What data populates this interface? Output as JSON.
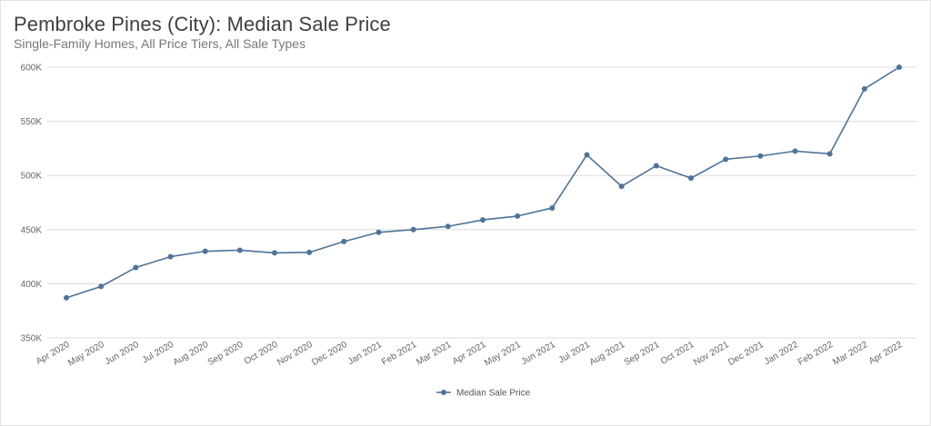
{
  "chart_data": {
    "type": "line",
    "title": "Pembroke Pines (City): Median Sale Price",
    "subtitle": "Single-Family Homes, All Price Tiers, All Sale Types",
    "categories": [
      "Apr 2020",
      "May 2020",
      "Jun 2020",
      "Jul 2020",
      "Aug 2020",
      "Sep 2020",
      "Oct 2020",
      "Nov 2020",
      "Dec 2020",
      "Jan 2021",
      "Feb 2021",
      "Mar 2021",
      "Apr 2021",
      "May 2021",
      "Jun 2021",
      "Jul 2021",
      "Aug 2021",
      "Sep 2021",
      "Oct 2021",
      "Nov 2021",
      "Dec 2021",
      "Jan 2022",
      "Feb 2022",
      "Mar 2022",
      "Apr 2022"
    ],
    "series": [
      {
        "name": "Median Sale Price",
        "color": "#4e7398",
        "values": [
          387000,
          397500,
          415000,
          425000,
          430000,
          431000,
          428500,
          429000,
          439000,
          447500,
          450000,
          453000,
          459000,
          462500,
          470000,
          519000,
          490000,
          509000,
          497500,
          515000,
          518000,
          522500,
          520000,
          580000,
          600000
        ]
      }
    ],
    "ylim": [
      350000,
      600000
    ],
    "yticks": [
      350000,
      400000,
      450000,
      500000,
      550000,
      600000
    ],
    "ytick_labels": [
      "350K",
      "400K",
      "450K",
      "500K",
      "550K",
      "600K"
    ],
    "xlabel": "",
    "ylabel": "",
    "grid": true,
    "legend_position": "bottom-center",
    "gridline_color": "#dcdcdc",
    "axis_text_color": "#666666"
  }
}
